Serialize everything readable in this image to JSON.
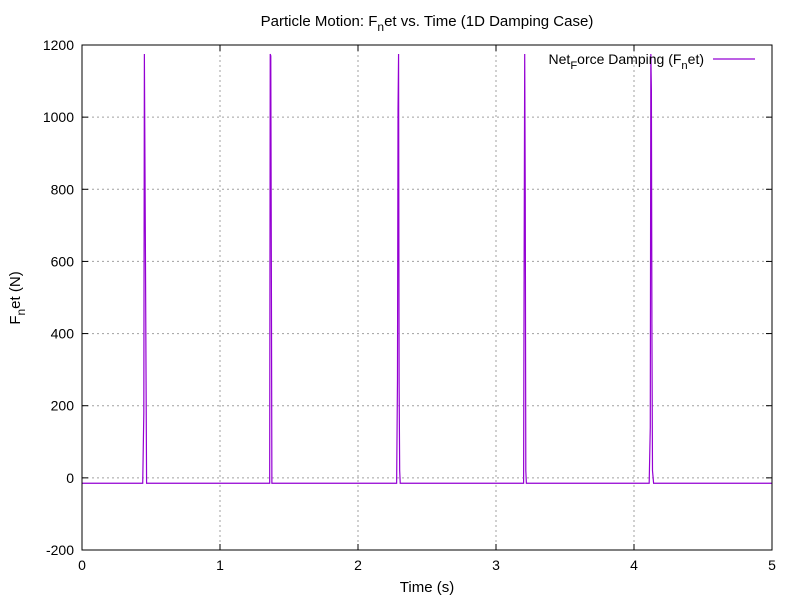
{
  "chart_data": {
    "type": "line",
    "title": "Particle Motion: F_net vs. Time (1D Damping Case)",
    "xlabel": "Time (s)",
    "ylabel": "F_net (N)",
    "xlim": [
      0,
      5
    ],
    "ylim": [
      -200,
      1200
    ],
    "xticks": [
      0,
      1,
      2,
      3,
      4,
      5
    ],
    "yticks": [
      -200,
      0,
      200,
      400,
      600,
      800,
      1000,
      1200
    ],
    "grid": true,
    "legend_position": "top-right",
    "series": [
      {
        "name": "Net_Force Damping (F_net)",
        "color": "#9400d3",
        "x": [
          0,
          0.44,
          0.448,
          0.452,
          0.456,
          0.46,
          0.468,
          1.36,
          1.364,
          1.368,
          1.372,
          1.376,
          1.38,
          2.28,
          2.286,
          2.29,
          2.294,
          2.298,
          2.302,
          2.306,
          2.31,
          3.2,
          3.204,
          3.208,
          3.212,
          3.216,
          3.22,
          3.228,
          4.11,
          4.118,
          4.122,
          4.126,
          4.13,
          4.134,
          4.142,
          5
        ],
        "y": [
          -15,
          -15,
          180,
          1175,
          890,
          600,
          -15,
          -15,
          1175,
          1170,
          600,
          -15,
          -15,
          -15,
          270,
          1020,
          1175,
          260,
          20,
          -15,
          -15,
          -15,
          620,
          1175,
          780,
          20,
          -15,
          -15,
          -15,
          140,
          1175,
          1075,
          400,
          20,
          -15,
          -15
        ]
      }
    ]
  }
}
